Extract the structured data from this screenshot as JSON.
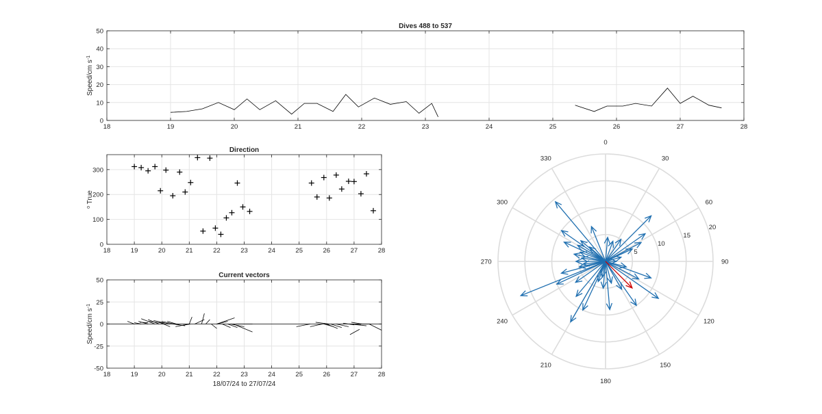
{
  "chart_data": [
    {
      "id": "speed",
      "type": "line",
      "title": "Dives 488 to 537",
      "ylabel_html": "Speed/cm s<tspan baseline-shift=\"super\" font-size=\"7\">-1</tspan>",
      "ylabel": "Speed/cm s-1",
      "xlim": [
        18,
        28
      ],
      "ylim": [
        0,
        50
      ],
      "xticks": [
        18,
        19,
        20,
        21,
        22,
        23,
        24,
        25,
        26,
        27,
        28
      ],
      "yticks": [
        0,
        10,
        20,
        30,
        40,
        50
      ],
      "grid": true,
      "series": [
        {
          "color": "#000000",
          "x": [
            19.0,
            19.25,
            19.5,
            19.75,
            20.0,
            20.2,
            20.4,
            20.65,
            20.9,
            21.1,
            21.3,
            21.55,
            21.75,
            21.95,
            22.2,
            22.45,
            22.7,
            22.9,
            23.1,
            23.2
          ],
          "y": [
            4.5,
            5,
            6.5,
            10,
            6,
            12,
            6,
            11,
            3.5,
            9.5,
            9.5,
            5,
            14.5,
            7.5,
            12.5,
            9,
            10.5,
            4,
            9.5,
            2
          ]
        },
        {
          "color": "#000000",
          "x": [
            25.35,
            25.65,
            25.85,
            26.1,
            26.3,
            26.55,
            26.8,
            27.0,
            27.2,
            27.45,
            27.65
          ],
          "y": [
            8.5,
            5,
            8,
            8,
            9.5,
            8,
            18,
            9.5,
            13.5,
            8.5,
            7
          ]
        }
      ]
    },
    {
      "id": "direction",
      "type": "scatter",
      "title": "Direction",
      "ylabel_html": "<tspan baseline-shift=\"super\" font-size=\"7\">o</tspan> True",
      "ylabel": "o True",
      "xlim": [
        18,
        28
      ],
      "ylim": [
        0,
        360
      ],
      "xticks": [
        18,
        19,
        20,
        21,
        22,
        23,
        24,
        25,
        26,
        27,
        28
      ],
      "yticks": [
        0,
        100,
        200,
        300
      ],
      "grid": true,
      "marker": "+",
      "x": [
        19.0,
        19.25,
        19.5,
        19.75,
        19.95,
        20.15,
        20.4,
        20.65,
        20.85,
        21.05,
        21.3,
        21.5,
        21.75,
        21.95,
        22.15,
        22.35,
        22.55,
        22.75,
        22.95,
        23.2,
        25.45,
        25.65,
        25.9,
        26.1,
        26.35,
        26.55,
        26.8,
        27.0,
        27.25,
        27.45,
        27.7
      ],
      "y": [
        312,
        308,
        295,
        312,
        215,
        298,
        195,
        290,
        210,
        248,
        348,
        53,
        346,
        65,
        40,
        106,
        127,
        246,
        150,
        132,
        246,
        190,
        268,
        186,
        278,
        222,
        253,
        252,
        203,
        283,
        135
      ]
    },
    {
      "id": "vectors",
      "type": "quiver",
      "title": "Current vectors",
      "ylabel_html": "Speed/cm s<tspan baseline-shift=\"super\" font-size=\"7\">-1</tspan>",
      "ylabel": "Speed/cm s-1",
      "xlabel": "18/07/24 to 27/07/24",
      "xlim": [
        18,
        28
      ],
      "ylim": [
        -50,
        50
      ],
      "xticks": [
        18,
        19,
        20,
        21,
        22,
        23,
        24,
        25,
        26,
        27,
        28
      ],
      "yticks": [
        -50,
        -25,
        0,
        25,
        50
      ],
      "grid": true,
      "baseline": [
        18,
        28
      ],
      "segments": [
        [
          18.75,
          3,
          19.0,
          0
        ],
        [
          19.0,
          1.5,
          19.25,
          0
        ],
        [
          19.15,
          3,
          19.5,
          0
        ],
        [
          19.2,
          2,
          19.5,
          1.5
        ],
        [
          19.25,
          6,
          19.75,
          0
        ],
        [
          19.5,
          5,
          19.9,
          0
        ],
        [
          19.5,
          3,
          20.1,
          1
        ],
        [
          19.7,
          4,
          20.3,
          0
        ],
        [
          19.9,
          2,
          20.3,
          -3
        ],
        [
          20.0,
          3,
          20.45,
          0
        ],
        [
          20.2,
          3,
          20.65,
          -1
        ],
        [
          20.4,
          0,
          20.85,
          -2
        ],
        [
          20.5,
          -3,
          21.0,
          0
        ],
        [
          20.75,
          -1.5,
          21.05,
          0
        ],
        [
          21.0,
          0,
          21.1,
          8
        ],
        [
          21.2,
          0,
          21.55,
          5
        ],
        [
          21.45,
          0,
          21.55,
          12
        ],
        [
          21.6,
          0,
          21.75,
          5
        ],
        [
          21.8,
          0,
          22.0,
          -5
        ],
        [
          22.0,
          0,
          22.4,
          3
        ],
        [
          22.0,
          0,
          22.65,
          7
        ],
        [
          22.2,
          0,
          22.5,
          -4
        ],
        [
          22.4,
          0,
          22.75,
          -4
        ],
        [
          22.5,
          0,
          23.0,
          -3
        ],
        [
          22.6,
          0,
          23.3,
          -9
        ],
        [
          22.7,
          0,
          23.3,
          0
        ],
        [
          24.9,
          -3,
          25.4,
          0
        ],
        [
          25.4,
          -3,
          25.85,
          0
        ],
        [
          25.6,
          2,
          26.1,
          0
        ],
        [
          25.9,
          0,
          26.25,
          -3
        ],
        [
          26.0,
          0,
          26.4,
          -5
        ],
        [
          26.15,
          0,
          26.55,
          -4
        ],
        [
          26.35,
          0,
          26.8,
          -3
        ],
        [
          26.6,
          1,
          27.0,
          -1
        ],
        [
          26.8,
          0,
          27.25,
          -1
        ],
        [
          26.85,
          0,
          27.45,
          -2
        ],
        [
          26.85,
          -12,
          27.2,
          -6
        ],
        [
          26.9,
          2,
          27.3,
          0
        ],
        [
          27.25,
          0,
          27.6,
          0
        ],
        [
          27.55,
          0,
          28.0,
          -7
        ]
      ]
    },
    {
      "id": "polar",
      "type": "compass",
      "rmax": 20,
      "rings": [
        5,
        10,
        15,
        20
      ],
      "ring_labels": [
        "5",
        "10",
        "15",
        "20"
      ],
      "spokes": [
        0,
        30,
        60,
        90,
        120,
        150,
        180,
        210,
        240,
        270,
        300,
        330
      ],
      "angle_labels": [
        "0",
        "30",
        "60",
        "90",
        "120",
        "150",
        "180",
        "210",
        "240",
        "270",
        "300",
        "330"
      ],
      "grid": true,
      "vector_color": "#1f6fb0",
      "mean_color": "#cc0000",
      "vectors": [
        [
          320,
          14.5
        ],
        [
          338,
          7
        ],
        [
          5,
          4.5
        ],
        [
          20,
          4
        ],
        [
          35,
          5
        ],
        [
          45,
          12
        ],
        [
          55,
          9
        ],
        [
          62,
          7.5
        ],
        [
          65,
          5.5
        ],
        [
          75,
          3
        ],
        [
          90,
          2
        ],
        [
          105,
          4
        ],
        [
          110,
          9
        ],
        [
          118,
          7
        ],
        [
          125,
          12
        ],
        [
          145,
          10
        ],
        [
          150,
          6
        ],
        [
          165,
          4.2
        ],
        [
          175,
          9
        ],
        [
          185,
          5
        ],
        [
          192,
          3
        ],
        [
          200,
          4
        ],
        [
          205,
          10
        ],
        [
          210,
          13
        ],
        [
          220,
          8.5
        ],
        [
          235,
          6.8
        ],
        [
          245,
          10
        ],
        [
          248,
          17
        ],
        [
          255,
          8.5
        ],
        [
          258,
          5
        ],
        [
          263,
          4.2
        ],
        [
          270,
          5.5
        ],
        [
          278,
          4.5
        ],
        [
          283,
          6
        ],
        [
          290,
          5
        ],
        [
          295,
          8.5
        ],
        [
          300,
          6
        ],
        [
          305,
          10
        ],
        [
          310,
          6
        ],
        [
          312,
          4
        ]
      ],
      "mean_vector": [
        135,
        7
      ]
    }
  ]
}
